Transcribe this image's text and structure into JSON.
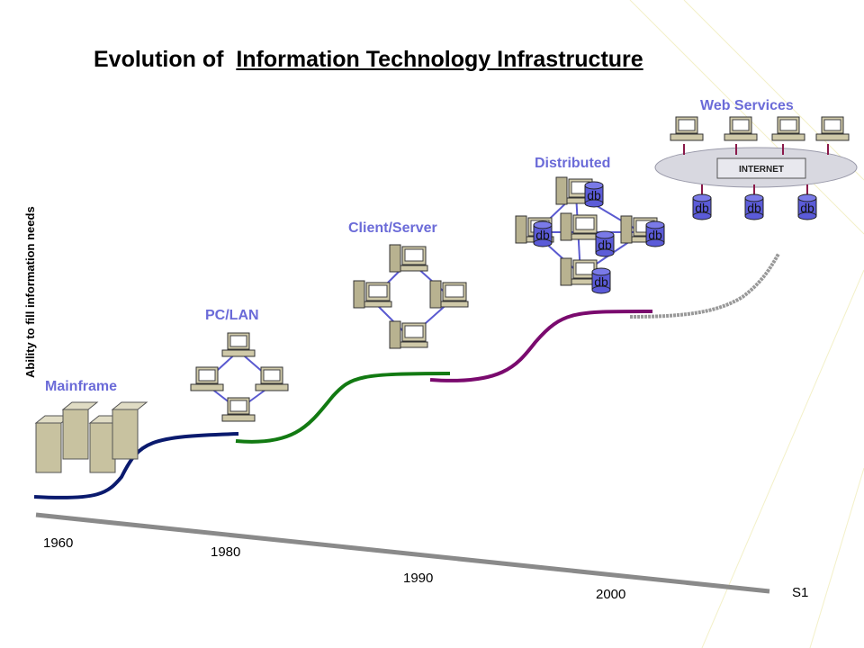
{
  "title": {
    "lead": "Evolution of",
    "underlined": "Information Technology Infrastructure"
  },
  "y_axis_label": "Ability to fill information needs",
  "eras": [
    "Mainframe",
    "PC/LAN",
    "Client/Server",
    "Distributed",
    "Web Services"
  ],
  "timeline": {
    "labels": [
      "1960",
      "1980",
      "1990",
      "2000"
    ],
    "end_label": "S1"
  },
  "distributed_db_labels": [
    "db",
    "db",
    "db",
    "db",
    "db"
  ],
  "web_db_labels": [
    "db",
    "db",
    "db"
  ],
  "internet_label": "INTERNET"
}
